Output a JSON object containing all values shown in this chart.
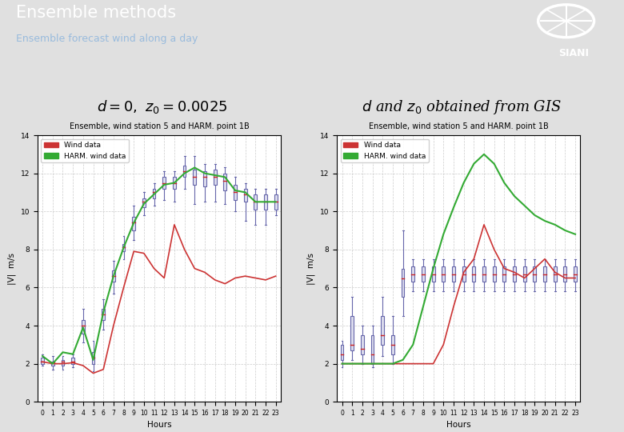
{
  "header_bg": "#1a3a6b",
  "header_title": "Ensemble methods",
  "header_subtitle": "Ensemble forecast wind along a day",
  "plot_title": "Ensemble, wind station 5 and HARM. point 1B",
  "xlabel": "Hours",
  "ylabel": "|V|  m/s",
  "hours": [
    0,
    1,
    2,
    3,
    4,
    5,
    6,
    7,
    8,
    9,
    10,
    11,
    12,
    13,
    14,
    15,
    16,
    17,
    18,
    19,
    20,
    21,
    22,
    23
  ],
  "wind_data_1": [
    2.1,
    2.0,
    2.0,
    2.05,
    1.9,
    1.5,
    1.7,
    4.0,
    6.0,
    7.9,
    7.8,
    7.0,
    6.5,
    9.3,
    8.0,
    7.0,
    6.8,
    6.4,
    6.2,
    6.5,
    6.6,
    6.5,
    6.4,
    6.6
  ],
  "harm_data_1": [
    2.4,
    2.0,
    2.6,
    2.5,
    3.9,
    2.2,
    4.7,
    6.6,
    8.1,
    9.4,
    10.4,
    10.9,
    11.4,
    11.5,
    12.0,
    12.3,
    12.0,
    11.9,
    11.8,
    11.1,
    11.0,
    10.5,
    10.5,
    10.5
  ],
  "ensemble_medians_1": [
    2.1,
    2.05,
    2.1,
    2.1,
    4.0,
    2.3,
    4.6,
    6.6,
    8.1,
    9.4,
    10.5,
    11.0,
    11.5,
    11.5,
    12.1,
    11.8,
    11.8,
    11.8,
    11.6,
    11.0,
    10.9,
    10.5,
    10.5,
    10.5
  ],
  "ensemble_q1_1": [
    2.0,
    1.9,
    1.9,
    2.0,
    3.6,
    2.0,
    4.3,
    6.3,
    7.9,
    9.0,
    10.2,
    10.7,
    11.2,
    11.2,
    11.8,
    11.4,
    11.3,
    11.4,
    11.1,
    10.6,
    10.5,
    10.1,
    10.1,
    10.1
  ],
  "ensemble_q3_1": [
    2.3,
    2.1,
    2.2,
    2.3,
    4.3,
    2.6,
    4.9,
    6.9,
    8.3,
    9.7,
    10.7,
    11.2,
    11.8,
    11.8,
    12.4,
    12.2,
    12.1,
    12.2,
    12.0,
    11.4,
    11.2,
    10.9,
    10.9,
    10.9
  ],
  "ensemble_min_1": [
    1.9,
    1.7,
    1.7,
    1.8,
    3.1,
    1.6,
    3.8,
    5.7,
    7.5,
    8.5,
    9.8,
    10.3,
    10.6,
    10.5,
    11.2,
    10.4,
    10.5,
    10.5,
    10.4,
    10.0,
    9.5,
    9.3,
    9.3,
    9.8
  ],
  "ensemble_max_1": [
    2.5,
    2.4,
    2.4,
    2.5,
    4.9,
    3.2,
    5.4,
    7.4,
    8.7,
    10.3,
    11.0,
    11.5,
    12.1,
    12.1,
    12.9,
    12.9,
    12.5,
    12.5,
    12.3,
    11.8,
    11.5,
    11.2,
    11.2,
    11.2
  ],
  "wind_data_2": [
    2.0,
    2.0,
    2.0,
    2.0,
    2.0,
    2.0,
    2.0,
    2.0,
    2.0,
    2.0,
    3.0,
    5.0,
    6.8,
    7.5,
    9.3,
    8.0,
    7.0,
    6.8,
    6.5,
    7.0,
    7.5,
    6.8,
    6.5,
    6.5
  ],
  "harm_data_2": [
    2.0,
    2.0,
    2.0,
    2.0,
    2.0,
    2.0,
    2.2,
    3.0,
    5.0,
    7.0,
    8.8,
    10.2,
    11.5,
    12.5,
    13.0,
    12.5,
    11.5,
    10.8,
    10.3,
    9.8,
    9.5,
    9.3,
    9.0,
    8.8
  ],
  "ensemble_medians_2": [
    2.5,
    3.0,
    2.8,
    2.5,
    3.5,
    3.0,
    6.5,
    6.7,
    6.7,
    6.7,
    6.7,
    6.7,
    6.7,
    6.7,
    6.7,
    6.7,
    6.7,
    6.7,
    6.7,
    6.7,
    6.7,
    6.7,
    6.7,
    6.7
  ],
  "ensemble_q1_2": [
    2.2,
    2.7,
    2.5,
    2.0,
    3.0,
    2.5,
    5.5,
    6.3,
    6.3,
    6.3,
    6.3,
    6.3,
    6.3,
    6.3,
    6.3,
    6.3,
    6.3,
    6.3,
    6.3,
    6.3,
    6.3,
    6.3,
    6.3,
    6.3
  ],
  "ensemble_q3_2": [
    3.0,
    4.5,
    3.5,
    3.5,
    4.5,
    3.5,
    7.0,
    7.1,
    7.1,
    7.1,
    7.1,
    7.1,
    7.1,
    7.1,
    7.1,
    7.1,
    7.1,
    7.1,
    7.1,
    7.1,
    7.1,
    7.1,
    7.1,
    7.1
  ],
  "ensemble_min_2": [
    1.8,
    2.2,
    2.0,
    1.8,
    2.4,
    2.0,
    4.5,
    5.8,
    5.8,
    5.8,
    5.8,
    5.8,
    5.8,
    5.8,
    5.8,
    5.8,
    5.8,
    5.8,
    5.8,
    5.8,
    5.8,
    5.8,
    5.8,
    5.8
  ],
  "ensemble_max_2": [
    3.2,
    5.5,
    4.0,
    4.0,
    5.5,
    4.5,
    9.0,
    7.5,
    7.5,
    7.5,
    7.5,
    7.5,
    7.5,
    7.5,
    7.5,
    7.5,
    7.5,
    7.5,
    7.5,
    7.5,
    7.5,
    7.5,
    7.5,
    7.5
  ],
  "color_wind": "#cc3333",
  "color_harm": "#33aa33",
  "color_box": "#6666aa",
  "color_box_face": "#ddddee",
  "color_median": "#cc2222"
}
